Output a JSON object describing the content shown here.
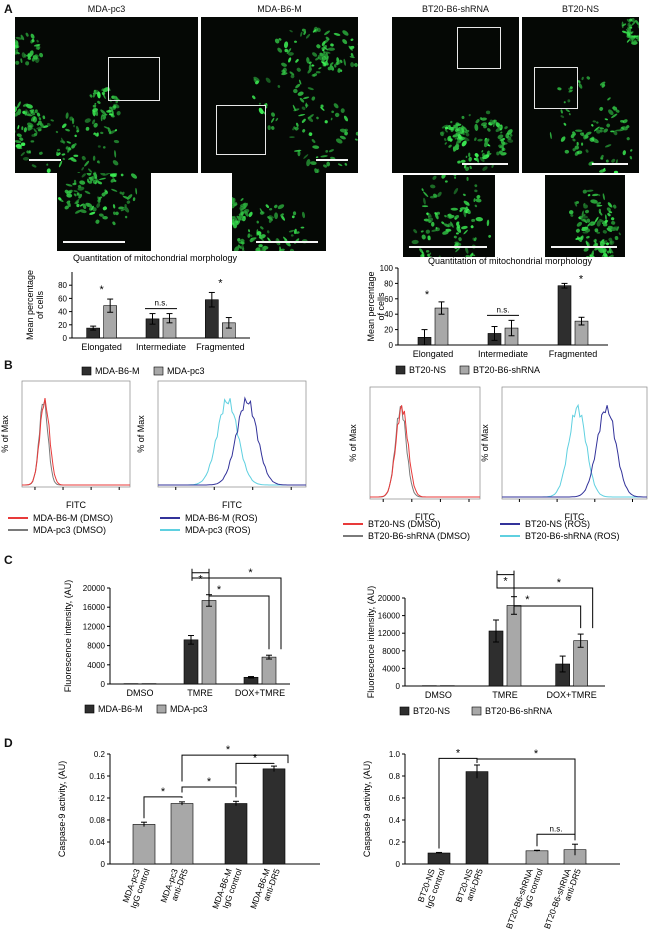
{
  "panel_letters": {
    "a": "A",
    "b": "B",
    "c": "C",
    "d": "D"
  },
  "micro_titles": [
    "MDA-pc3",
    "MDA-B6-M",
    "BT20-B6-shRNA",
    "BT20-NS"
  ],
  "colors": {
    "dark_bar": "#2e2e2e",
    "light_bar": "#a8a8a8",
    "mito_green": "#3fd35f",
    "red": "#e83a3a",
    "gray": "#7a7a7a",
    "blue": "#32329a",
    "cyan": "#5fd0e0"
  },
  "chart_data": [
    {
      "type": "bar",
      "title": "Quantitation of mitochondrial morphology",
      "ylabel": "Mean percentage of cells",
      "ylim": [
        0,
        100
      ],
      "yticks": [
        "0",
        "20",
        "40",
        "60",
        "80"
      ],
      "categories": [
        "Elongated",
        "Intermediate",
        "Fragmented"
      ],
      "series": [
        {
          "name": "MDA-B6-M",
          "values": [
            15,
            29,
            58
          ],
          "err": [
            3,
            8,
            11
          ]
        },
        {
          "name": "MDA-pc3",
          "values": [
            49,
            30,
            23
          ],
          "err": [
            10,
            7,
            8
          ]
        }
      ],
      "annotations": [
        "*",
        "n.s.",
        "*"
      ]
    },
    {
      "type": "bar",
      "title": "Quantitation of mitochondrial morphology",
      "ylabel": "Mean percentage of cells",
      "ylim": [
        0,
        100
      ],
      "yticks": [
        "0",
        "20",
        "40",
        "60",
        "80",
        "100"
      ],
      "categories": [
        "Elongated",
        "Intermediate",
        "Fragmented"
      ],
      "series": [
        {
          "name": "BT20-NS",
          "values": [
            10,
            15,
            77
          ],
          "err": [
            10,
            9,
            3
          ]
        },
        {
          "name": "BT20-B6-shRNA",
          "values": [
            48,
            22,
            31
          ],
          "err": [
            8,
            10,
            5
          ]
        }
      ],
      "annotations": [
        "*",
        "n.s.",
        "*"
      ]
    },
    {
      "type": "line",
      "xlabel": "FITC",
      "ylabel": "% of Max",
      "series": [
        {
          "name": "MDA-B6-M (DMSO)",
          "color": "#e83a3a"
        },
        {
          "name": "MDA-pc3 (DMSO)",
          "color": "#7a7a7a"
        },
        {
          "name": "MDA-B6-M (ROS)",
          "color": "#32329a"
        },
        {
          "name": "MDA-pc3 (ROS)",
          "color": "#5fd0e0"
        }
      ]
    },
    {
      "type": "line",
      "xlabel": "FITC",
      "ylabel": "% of Max",
      "series": [
        {
          "name": "BT20-NS (DMSO)",
          "color": "#e83a3a"
        },
        {
          "name": "BT20-B6-shRNA (DMSO)",
          "color": "#7a7a7a"
        },
        {
          "name": "BT20-NS (ROS)",
          "color": "#32329a"
        },
        {
          "name": "BT20-B6-shRNA (ROS)",
          "color": "#5fd0e0"
        }
      ]
    },
    {
      "type": "bar",
      "ylabel": "Fluorescence intensity, (AU)",
      "ylim": [
        0,
        20000
      ],
      "yticks": [
        "0",
        "4000",
        "8000",
        "12000",
        "16000",
        "20000"
      ],
      "categories": [
        "DMSO",
        "TMRE",
        "DOX+TMRE"
      ],
      "series": [
        {
          "name": "MDA-B6-M",
          "values": [
            80,
            9200,
            1400
          ],
          "err": [
            0,
            900,
            150
          ]
        },
        {
          "name": "MDA-pc3",
          "values": [
            80,
            17400,
            5600
          ],
          "err": [
            0,
            1200,
            400
          ]
        }
      ],
      "annotations": [
        "*",
        "*",
        "*"
      ]
    },
    {
      "type": "bar",
      "ylabel": "Fluorescence intensity, (AU)",
      "ylim": [
        0,
        20000
      ],
      "yticks": [
        "0",
        "4000",
        "8000",
        "12000",
        "16000",
        "20000"
      ],
      "categories": [
        "DMSO",
        "TMRE",
        "DOX+TMRE"
      ],
      "series": [
        {
          "name": "BT20-NS",
          "values": [
            80,
            12500,
            5000
          ],
          "err": [
            0,
            2500,
            1800
          ]
        },
        {
          "name": "BT20-B6-shRNA",
          "values": [
            80,
            18300,
            10300
          ],
          "err": [
            0,
            2000,
            1500
          ]
        }
      ],
      "annotations": [
        "*",
        "*",
        "*"
      ]
    },
    {
      "type": "bar",
      "ylabel": "Caspase-9 activity, (AU)",
      "ylim": [
        0,
        0.2
      ],
      "yticks": [
        "0",
        "0.04",
        "0.08",
        "0.12",
        "0.16",
        "0.2"
      ],
      "categories": [
        "MDA-pc3 IgG control",
        "MDA-pc3 anti-DR5",
        "MDA-B6-M IgG control",
        "MDA-B6-M anti-DR5"
      ],
      "values": [
        0.072,
        0.11,
        0.11,
        0.173
      ],
      "err": [
        0.004,
        0.003,
        0.004,
        0.005
      ],
      "annotations": [
        "*",
        "*",
        "*",
        "*"
      ]
    },
    {
      "type": "bar",
      "ylabel": "Caspase-9 activity, (AU)",
      "ylim": [
        0,
        1
      ],
      "yticks": [
        "0",
        "0.2",
        "0.4",
        "0.6",
        "0.8",
        "1.0"
      ],
      "categories": [
        "BT20-NS IgG control",
        "BT20-NS anti-DR5",
        "BT20-B6-shRNA IgG control",
        "BT20-B6-shRNA anti-DR5"
      ],
      "values": [
        0.1,
        0.84,
        0.12,
        0.13
      ],
      "err": [
        0.005,
        0.06,
        0.005,
        0.05
      ],
      "annotations": [
        "*",
        "*",
        "n.s."
      ]
    }
  ]
}
